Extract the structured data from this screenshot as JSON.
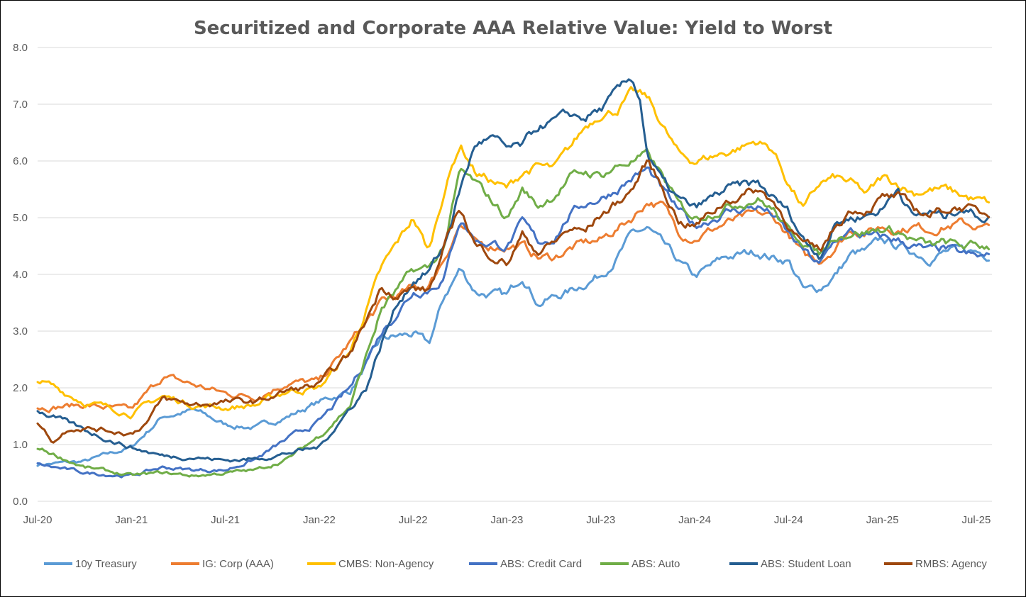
{
  "chart_data": {
    "type": "line",
    "title": "Securitized and Corporate AAA Relative Value: Yield to Worst",
    "xlabel": "",
    "ylabel": "",
    "ylim": [
      0,
      8
    ],
    "yticks": [
      "0.0",
      "1.0",
      "2.0",
      "3.0",
      "4.0",
      "5.0",
      "6.0",
      "7.0",
      "8.0"
    ],
    "x_ticks": [
      "Jul-20",
      "Jan-21",
      "Jul-21",
      "Jan-22",
      "Jul-22",
      "Jan-23",
      "Jul-23",
      "Jan-24",
      "Jul-24",
      "Jan-25",
      "Jul-25"
    ],
    "x_months": [
      0,
      6,
      12,
      18,
      24,
      30,
      36,
      42,
      48,
      54,
      60
    ],
    "x_max": 61,
    "grid": true,
    "legend_position": "bottom",
    "series": [
      {
        "name": "10y Treasury",
        "color": "#5B9BD5",
        "x": [
          0,
          3,
          6,
          8,
          10,
          12,
          14,
          16,
          18,
          20,
          22,
          24,
          25,
          26,
          27,
          28,
          30,
          31,
          32,
          33,
          34,
          35,
          36,
          37,
          38,
          39,
          40,
          41,
          42,
          44,
          46,
          47,
          48,
          49,
          50,
          51,
          52,
          53,
          54,
          55,
          56,
          57,
          58,
          59,
          60,
          60.8
        ],
        "values": [
          0.65,
          0.7,
          0.95,
          1.5,
          1.6,
          1.35,
          1.3,
          1.5,
          1.75,
          1.95,
          2.85,
          2.95,
          2.75,
          3.6,
          4.1,
          3.7,
          3.6,
          4.0,
          3.5,
          3.6,
          3.7,
          3.85,
          4.0,
          4.3,
          4.7,
          4.8,
          4.5,
          4.2,
          3.95,
          4.3,
          4.4,
          4.3,
          4.25,
          3.7,
          3.75,
          4.0,
          4.35,
          4.4,
          4.6,
          4.5,
          4.4,
          4.3,
          4.4,
          4.4,
          4.4,
          4.35
        ]
      },
      {
        "name": "IG: Corp (AAA)",
        "color": "#ED7D31",
        "x": [
          0,
          3,
          6,
          8,
          10,
          12,
          14,
          16,
          18,
          20,
          22,
          24,
          25,
          26,
          27,
          28,
          30,
          31,
          32,
          33,
          34,
          35,
          36,
          37,
          38,
          39,
          40,
          41,
          42,
          44,
          46,
          47,
          48,
          49,
          50,
          51,
          52,
          53,
          54,
          55,
          56,
          57,
          58,
          59,
          60,
          60.8
        ],
        "values": [
          1.65,
          1.7,
          1.6,
          2.2,
          2.05,
          1.9,
          1.85,
          2.1,
          2.1,
          2.8,
          3.5,
          3.75,
          3.8,
          4.3,
          4.9,
          4.5,
          4.5,
          4.5,
          4.3,
          4.3,
          4.45,
          4.55,
          4.6,
          4.8,
          5.0,
          5.3,
          5.2,
          4.75,
          4.65,
          4.9,
          5.05,
          5.0,
          4.7,
          4.3,
          4.25,
          4.5,
          4.8,
          4.75,
          4.85,
          4.8,
          4.85,
          4.8,
          4.85,
          4.9,
          4.85,
          4.8
        ]
      },
      {
        "name": "CMBS: Non-Agency",
        "color": "#FFC000",
        "x": [
          0,
          3,
          6,
          8,
          10,
          12,
          14,
          16,
          18,
          20,
          22,
          24,
          25,
          26,
          27,
          28,
          30,
          31,
          32,
          33,
          34,
          35,
          36,
          37,
          38,
          39,
          40,
          41,
          42,
          44,
          46,
          47,
          48,
          49,
          50,
          51,
          52,
          53,
          54,
          55,
          56,
          57,
          58,
          59,
          60,
          60.8
        ],
        "values": [
          2.15,
          1.75,
          1.55,
          1.85,
          1.7,
          1.65,
          1.7,
          1.95,
          2.0,
          2.65,
          4.1,
          5.0,
          4.4,
          5.5,
          6.3,
          5.8,
          5.5,
          5.8,
          5.9,
          5.85,
          6.2,
          6.6,
          6.85,
          6.9,
          7.2,
          7.1,
          6.6,
          6.1,
          6.0,
          6.15,
          6.35,
          6.2,
          5.6,
          5.15,
          5.6,
          5.7,
          5.6,
          5.4,
          5.7,
          5.6,
          5.45,
          5.5,
          5.5,
          5.4,
          5.3,
          5.25
        ]
      },
      {
        "name": "ABS: Credit Card",
        "color": "#4472C4",
        "x": [
          0,
          3,
          6,
          8,
          10,
          12,
          14,
          16,
          18,
          20,
          22,
          24,
          25,
          26,
          27,
          28,
          30,
          31,
          32,
          33,
          34,
          35,
          36,
          37,
          38,
          39,
          40,
          41,
          42,
          44,
          46,
          47,
          48,
          49,
          50,
          51,
          52,
          53,
          54,
          55,
          56,
          57,
          58,
          59,
          60,
          60.8
        ],
        "values": [
          0.65,
          0.5,
          0.45,
          0.6,
          0.55,
          0.55,
          0.75,
          1.1,
          1.4,
          2.0,
          3.0,
          3.7,
          3.75,
          3.95,
          5.0,
          4.6,
          4.5,
          4.9,
          4.55,
          4.65,
          5.05,
          5.25,
          5.35,
          5.5,
          5.7,
          5.85,
          5.45,
          5.1,
          4.85,
          5.1,
          5.2,
          5.05,
          4.7,
          4.4,
          4.15,
          4.6,
          4.75,
          4.65,
          4.65,
          4.6,
          4.5,
          4.4,
          4.45,
          4.35,
          4.3,
          4.3
        ]
      },
      {
        "name": "ABS: Auto",
        "color": "#70AD47",
        "x": [
          0,
          3,
          6,
          8,
          10,
          12,
          14,
          16,
          18,
          20,
          22,
          24,
          25,
          26,
          27,
          28,
          30,
          31,
          32,
          33,
          34,
          35,
          36,
          37,
          38,
          39,
          40,
          41,
          42,
          44,
          46,
          47,
          48,
          49,
          50,
          51,
          52,
          53,
          54,
          55,
          56,
          57,
          58,
          59,
          60,
          60.8
        ],
        "values": [
          0.95,
          0.6,
          0.45,
          0.5,
          0.45,
          0.5,
          0.55,
          0.75,
          1.15,
          1.7,
          3.4,
          4.05,
          4.1,
          4.5,
          5.8,
          5.6,
          5.0,
          5.5,
          5.2,
          5.4,
          5.7,
          5.8,
          5.75,
          5.9,
          6.0,
          6.1,
          5.7,
          5.2,
          5.0,
          5.2,
          5.35,
          5.15,
          4.75,
          4.6,
          4.35,
          4.7,
          4.75,
          4.75,
          4.8,
          4.75,
          4.6,
          4.5,
          4.55,
          4.5,
          4.5,
          4.5
        ]
      },
      {
        "name": "ABS: Student Loan",
        "color": "#255E91",
        "x": [
          0,
          3,
          6,
          8,
          10,
          12,
          14,
          16,
          18,
          20,
          21,
          22,
          23,
          24,
          25,
          26,
          27,
          28,
          29,
          30,
          31,
          32,
          33,
          34,
          35,
          35.5,
          36,
          37,
          38,
          38.5,
          39,
          40,
          41,
          42,
          44,
          46,
          47,
          48,
          49,
          50,
          51,
          52,
          53,
          54,
          55,
          56,
          57,
          58,
          59,
          60,
          60.8
        ],
        "values": [
          1.6,
          1.25,
          0.95,
          0.8,
          0.78,
          0.72,
          0.75,
          0.85,
          0.95,
          1.65,
          2.0,
          2.8,
          3.5,
          3.9,
          4.05,
          4.5,
          5.5,
          6.3,
          6.4,
          6.2,
          6.25,
          6.6,
          6.7,
          6.8,
          6.75,
          6.85,
          6.9,
          7.2,
          7.45,
          7.1,
          6.1,
          5.6,
          5.3,
          5.15,
          5.5,
          5.6,
          5.35,
          5.1,
          4.6,
          4.35,
          4.9,
          5.0,
          5.05,
          5.15,
          5.55,
          5.0,
          5.1,
          5.0,
          5.2,
          5.05,
          5.0
        ]
      },
      {
        "name": "RMBS: Agency",
        "color": "#9E480E",
        "x": [
          0,
          1,
          2,
          3,
          6,
          7,
          8,
          10,
          12,
          14,
          16,
          18,
          20,
          22,
          23,
          24,
          25,
          26,
          27,
          28,
          30,
          31,
          32,
          33,
          34,
          35,
          36,
          37,
          38,
          39,
          40,
          41,
          42,
          44,
          46,
          47,
          48,
          49,
          50,
          51,
          52,
          53,
          54,
          55,
          56,
          57,
          58,
          59,
          60,
          60.8
        ],
        "values": [
          1.4,
          1.05,
          1.3,
          1.3,
          1.2,
          1.4,
          1.8,
          1.7,
          1.75,
          1.75,
          1.95,
          2.05,
          2.6,
          3.8,
          3.65,
          3.75,
          3.7,
          4.45,
          5.2,
          4.5,
          4.2,
          4.7,
          4.4,
          4.55,
          4.8,
          4.75,
          5.05,
          5.25,
          5.5,
          6.0,
          5.5,
          4.95,
          4.85,
          5.3,
          5.5,
          5.3,
          4.9,
          4.5,
          4.4,
          4.85,
          5.15,
          5.15,
          5.35,
          5.35,
          5.15,
          5.05,
          5.15,
          5.2,
          5.1,
          5.05
        ]
      }
    ]
  }
}
